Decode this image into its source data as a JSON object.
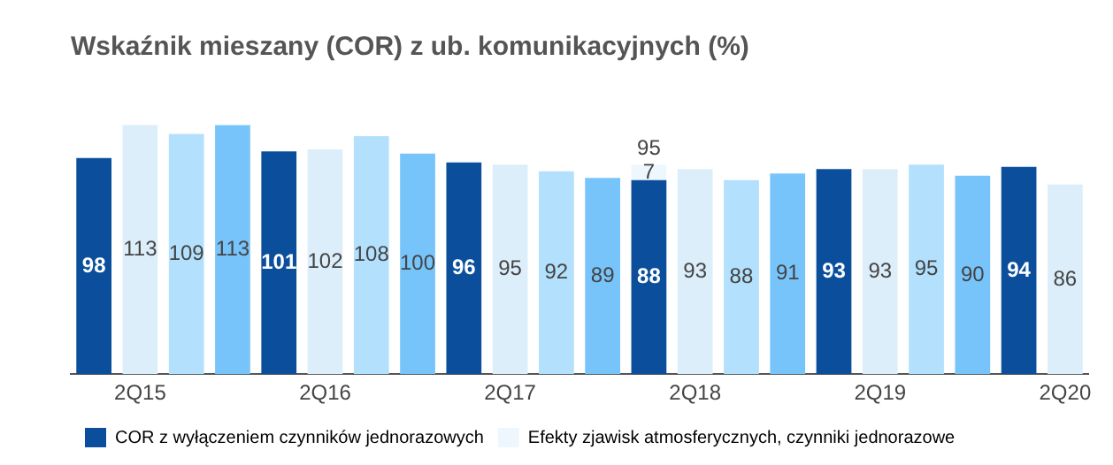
{
  "chart_data": {
    "type": "bar",
    "title": "Wskaźnik mieszany (COR) z ub. komunikacyjnych (%)",
    "stacked": true,
    "data_labels": true,
    "legend": "bottom",
    "grid": false,
    "tick_labels": "x",
    "categories": [
      null,
      "2Q15",
      null,
      null,
      null,
      "2Q16",
      null,
      null,
      null,
      "2Q17",
      null,
      null,
      null,
      "2Q18",
      null,
      null,
      null,
      "2Q19",
      null,
      null,
      null,
      "2Q20"
    ],
    "series": [
      {
        "name": "COR z wyłączeniem czynników jednorazowych",
        "color": "#0b4f9c",
        "colors": [
          "#0b4f9c",
          "#dceefa",
          "#b3e0fc",
          "#77c4fb",
          "#0b4f9c",
          "#dceefa",
          "#b3e0fc",
          "#77c4fb",
          "#0b4f9c",
          "#dceefa",
          "#b3e0fc",
          "#77c4fb",
          "#0b4f9c",
          "#dceefa",
          "#b3e0fc",
          "#77c4fb",
          "#0b4f9c",
          "#dceefa",
          "#b3e0fc",
          "#77c4fb",
          "#0b4f9c",
          "#dceefa"
        ],
        "values": [
          98,
          113,
          109,
          113,
          101,
          102,
          108,
          100,
          96,
          95,
          92,
          89,
          88,
          93,
          88,
          91,
          93,
          93,
          95,
          90,
          94,
          86
        ]
      },
      {
        "name": "Efekty zjawisk atmosferycznych, czynniki jednorazowe",
        "color": "#eef7fd",
        "values": [
          null,
          null,
          null,
          null,
          null,
          null,
          null,
          null,
          null,
          null,
          null,
          null,
          7,
          null,
          null,
          null,
          null,
          null,
          null,
          null,
          null,
          null
        ]
      }
    ],
    "totals": [
      null,
      null,
      null,
      null,
      null,
      null,
      null,
      null,
      null,
      null,
      null,
      null,
      "95",
      null,
      null,
      null,
      null,
      null,
      null,
      null,
      null,
      null
    ]
  }
}
